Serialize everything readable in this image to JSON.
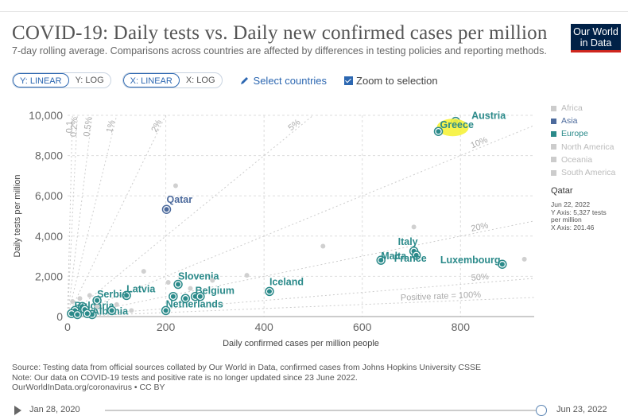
{
  "header": {
    "title": "COVID-19: Daily tests vs. Daily new confirmed cases per million",
    "subtitle": "7-day rolling average. Comparisons across countries are affected by differences in testing policies and reporting methods.",
    "logo_line1": "Our World",
    "logo_line2": "in Data"
  },
  "controls": {
    "y_linear": "Y: LINEAR",
    "y_log": "Y: LOG",
    "x_linear": "X: LINEAR",
    "x_log": "X: LOG",
    "select_countries": "Select countries",
    "zoom_label": "Zoom to selection"
  },
  "legend": [
    {
      "label": "Africa",
      "active": false,
      "color": "#cccccc"
    },
    {
      "label": "Asia",
      "active": true,
      "color": "#4c6a9c"
    },
    {
      "label": "Europe",
      "active": true,
      "color": "#2b8a8a"
    },
    {
      "label": "North America",
      "active": false,
      "color": "#cccccc"
    },
    {
      "label": "Oceania",
      "active": false,
      "color": "#cccccc"
    },
    {
      "label": "South America",
      "active": false,
      "color": "#cccccc"
    }
  ],
  "tooltip": {
    "name": "Qatar",
    "date": "Jun 22, 2022",
    "y_line": "Y Axis: 5,327 tests per million",
    "x_line": "X Axis: 201.46"
  },
  "source": {
    "line1": "Source: Testing data from official sources collated by Our World in Data, confirmed cases from Johns Hopkins University CSSE",
    "line2": "Note: Our data on COVID-19 tests and positive rate is no longer updated since 23 June 2022.",
    "line3": "OurWorldInData.org/coronavirus • CC BY"
  },
  "timeline": {
    "start": "Jan 28, 2020",
    "end": "Jun 23, 2022"
  },
  "chart_data": {
    "type": "scatter",
    "xlabel": "Daily confirmed cases per million people",
    "ylabel": "Daily tests per million",
    "xlim": [
      0,
      950
    ],
    "ylim": [
      0,
      10000
    ],
    "x_ticks": [
      0,
      200,
      400,
      600,
      800
    ],
    "x_tick_labels": [
      "0",
      "200",
      "400",
      "600",
      "800"
    ],
    "y_ticks": [
      0,
      2000,
      4000,
      6000,
      8000,
      10000
    ],
    "y_tick_labels": [
      "0",
      "2,000",
      "4,000",
      "6,000",
      "8,000",
      "10,000"
    ],
    "grid": true,
    "positive_rate_lines": [
      {
        "label": "0.1%",
        "rate": 0.001,
        "shown": "0.1"
      },
      {
        "label": "0.2%",
        "rate": 0.002
      },
      {
        "label": "0.5%",
        "rate": 0.005
      },
      {
        "label": "1%",
        "rate": 0.01
      },
      {
        "label": "2%",
        "rate": 0.02
      },
      {
        "label": "5%",
        "rate": 0.05
      },
      {
        "label": "10%",
        "rate": 0.1
      },
      {
        "label": "20%",
        "rate": 0.2
      },
      {
        "label": "50%",
        "rate": 0.5
      },
      {
        "label": "Positive rate = 100%",
        "rate": 1.0
      }
    ],
    "points": [
      {
        "name": "Austria",
        "x": 790,
        "y": 9700,
        "region": "Europe",
        "label": true
      },
      {
        "name": "Greece",
        "x": 755,
        "y": 9200,
        "region": "Europe",
        "label": true,
        "highlight": true
      },
      {
        "name": "Qatar",
        "x": 201.46,
        "y": 5327,
        "region": "Asia",
        "label": true
      },
      {
        "name": "Italy",
        "x": 705,
        "y": 3250,
        "region": "Europe",
        "label": true
      },
      {
        "name": "France",
        "x": 710,
        "y": 3050,
        "region": "Europe",
        "label": true
      },
      {
        "name": "Malta",
        "x": 638,
        "y": 2800,
        "region": "Europe",
        "label": true
      },
      {
        "name": "Luxembourg",
        "x": 885,
        "y": 2600,
        "region": "Europe",
        "label": true
      },
      {
        "name": "Iceland",
        "x": 411,
        "y": 1250,
        "region": "Europe",
        "label": true
      },
      {
        "name": "Slovenia",
        "x": 225,
        "y": 1600,
        "region": "Europe",
        "label": true
      },
      {
        "name": "Belgium",
        "x": 260,
        "y": 1000,
        "region": "Europe",
        "label": true
      },
      {
        "name": "Netherlands",
        "x": 200,
        "y": 300,
        "region": "Europe",
        "label": true
      },
      {
        "name": "Latvia",
        "x": 120,
        "y": 1050,
        "region": "Europe",
        "label": true
      },
      {
        "name": "Serbia",
        "x": 60,
        "y": 800,
        "region": "Europe",
        "label": true
      },
      {
        "name": "Bulgaria",
        "x": 30,
        "y": 500,
        "region": "Europe",
        "label": true
      },
      {
        "name": "Albania",
        "x": 50,
        "y": 100,
        "region": "Europe",
        "label": true
      },
      {
        "name": "",
        "x": 215,
        "y": 1000,
        "region": "Europe",
        "label": false
      },
      {
        "name": "",
        "x": 240,
        "y": 900,
        "region": "Europe",
        "label": false
      },
      {
        "name": "",
        "x": 270,
        "y": 1000,
        "region": "Europe",
        "label": false
      },
      {
        "name": "",
        "x": 90,
        "y": 300,
        "region": "Europe",
        "label": false
      },
      {
        "name": "",
        "x": 15,
        "y": 300,
        "region": "Europe",
        "label": false
      },
      {
        "name": "",
        "x": 8,
        "y": 150,
        "region": "Europe",
        "label": false
      },
      {
        "name": "",
        "x": 20,
        "y": 100,
        "region": "Europe",
        "label": false
      },
      {
        "name": "",
        "x": 35,
        "y": 350,
        "region": "Europe",
        "label": false
      },
      {
        "name": "",
        "x": 40,
        "y": 150,
        "region": "Europe",
        "label": false
      },
      {
        "name": "",
        "x": 220,
        "y": 6500,
        "region": "Other",
        "label": false
      },
      {
        "name": "",
        "x": 705,
        "y": 4450,
        "region": "Other",
        "label": false
      },
      {
        "name": "",
        "x": 520,
        "y": 3500,
        "region": "Other",
        "label": false
      },
      {
        "name": "",
        "x": 930,
        "y": 2850,
        "region": "Other",
        "label": false
      },
      {
        "name": "",
        "x": 155,
        "y": 2250,
        "region": "Other",
        "label": false
      },
      {
        "name": "",
        "x": 365,
        "y": 2050,
        "region": "Other",
        "label": false
      },
      {
        "name": "",
        "x": 205,
        "y": 1700,
        "region": "Other",
        "label": false
      },
      {
        "name": "",
        "x": 295,
        "y": 1800,
        "region": "Other",
        "label": false
      },
      {
        "name": "",
        "x": 250,
        "y": 1400,
        "region": "Other",
        "label": false
      },
      {
        "name": "",
        "x": 10,
        "y": 750,
        "region": "Other",
        "label": false
      },
      {
        "name": "",
        "x": 25,
        "y": 900,
        "region": "Other",
        "label": false
      },
      {
        "name": "",
        "x": 45,
        "y": 1050,
        "region": "Other",
        "label": false
      },
      {
        "name": "",
        "x": 60,
        "y": 500,
        "region": "Other",
        "label": false
      },
      {
        "name": "",
        "x": 100,
        "y": 600,
        "region": "Other",
        "label": false
      },
      {
        "name": "",
        "x": 130,
        "y": 300,
        "region": "Other",
        "label": false
      }
    ]
  }
}
